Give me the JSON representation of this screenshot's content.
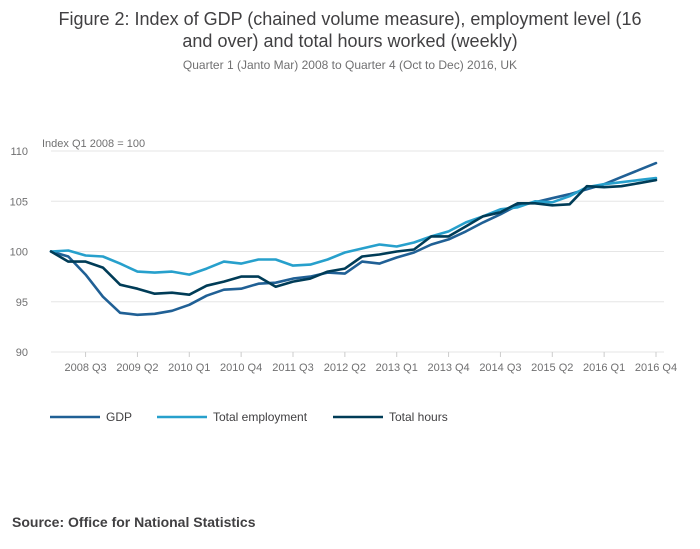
{
  "title_line1": "Figure 2: Index of GDP (chained volume measure), employment level (16",
  "title_line2": "and over) and total hours worked (weekly)",
  "subtitle": "Quarter 1 (Janto Mar) 2008 to Quarter 4 (Oct to Dec) 2016, UK",
  "source": "Source: Office for National Statistics",
  "colors": {
    "gdp": "#206095",
    "employment": "#27a0cc",
    "hours": "#003c57",
    "grid": "#e6e6e6"
  },
  "chart_data": {
    "type": "line",
    "ylabel": "Index Q1 2008 = 100",
    "ylim": [
      90,
      110
    ],
    "yticks": [
      90,
      95,
      100,
      105,
      110
    ],
    "x": [
      "2008 Q1",
      "2008 Q2",
      "2008 Q3",
      "2008 Q4",
      "2009 Q1",
      "2009 Q2",
      "2009 Q3",
      "2009 Q4",
      "2010 Q1",
      "2010 Q2",
      "2010 Q3",
      "2010 Q4",
      "2011 Q1",
      "2011 Q2",
      "2011 Q3",
      "2011 Q4",
      "2012 Q1",
      "2012 Q2",
      "2012 Q3",
      "2012 Q4",
      "2013 Q1",
      "2013 Q2",
      "2013 Q3",
      "2013 Q4",
      "2014 Q1",
      "2014 Q2",
      "2014 Q3",
      "2014 Q4",
      "2015 Q1",
      "2015 Q2",
      "2015 Q3",
      "2015 Q4",
      "2016 Q1",
      "2016 Q2",
      "2016 Q3",
      "2016 Q4"
    ],
    "xtick_labels": [
      "2008 Q3",
      "2009 Q2",
      "2010 Q1",
      "2010 Q4",
      "2011 Q3",
      "2012 Q2",
      "2013 Q1",
      "2013 Q4",
      "2014 Q3",
      "2015 Q2",
      "2016 Q1",
      "2016 Q4"
    ],
    "xtick_indices": [
      2,
      5,
      8,
      11,
      14,
      17,
      20,
      23,
      26,
      29,
      32,
      35
    ],
    "series": [
      {
        "name": "GDP",
        "key": "gdp",
        "values": [
          100.0,
          99.5,
          97.7,
          95.5,
          93.9,
          93.7,
          93.8,
          94.1,
          94.7,
          95.6,
          96.2,
          96.3,
          96.8,
          96.9,
          97.3,
          97.5,
          97.9,
          97.8,
          99.0,
          98.8,
          99.4,
          99.9,
          100.7,
          101.2,
          102.0,
          102.9,
          103.7,
          104.6,
          104.9,
          105.3,
          105.7,
          106.2,
          106.7,
          107.4,
          108.1,
          108.8
        ]
      },
      {
        "name": "Total employment",
        "key": "employment",
        "values": [
          100.0,
          100.1,
          99.6,
          99.5,
          98.8,
          98.0,
          97.9,
          98.0,
          97.7,
          98.3,
          99.0,
          98.8,
          99.2,
          99.2,
          98.6,
          98.7,
          99.2,
          99.9,
          100.3,
          100.7,
          100.5,
          100.9,
          101.5,
          102.0,
          102.9,
          103.5,
          104.2,
          104.4,
          105.0,
          104.9,
          105.5,
          106.4,
          106.7,
          106.9,
          107.1,
          107.3
        ]
      },
      {
        "name": "Total hours",
        "key": "hours",
        "values": [
          100.0,
          99.0,
          99.0,
          98.4,
          96.7,
          96.3,
          95.8,
          95.9,
          95.7,
          96.6,
          97.0,
          97.5,
          97.5,
          96.5,
          97.0,
          97.3,
          98.0,
          98.3,
          99.5,
          99.7,
          100.0,
          100.2,
          101.5,
          101.5,
          102.5,
          103.5,
          103.9,
          104.8,
          104.8,
          104.6,
          104.7,
          106.5,
          106.4,
          106.5,
          106.8,
          107.1
        ]
      }
    ],
    "legend": [
      "GDP",
      "Total employment",
      "Total hours"
    ],
    "legend_placement": "bottom"
  }
}
